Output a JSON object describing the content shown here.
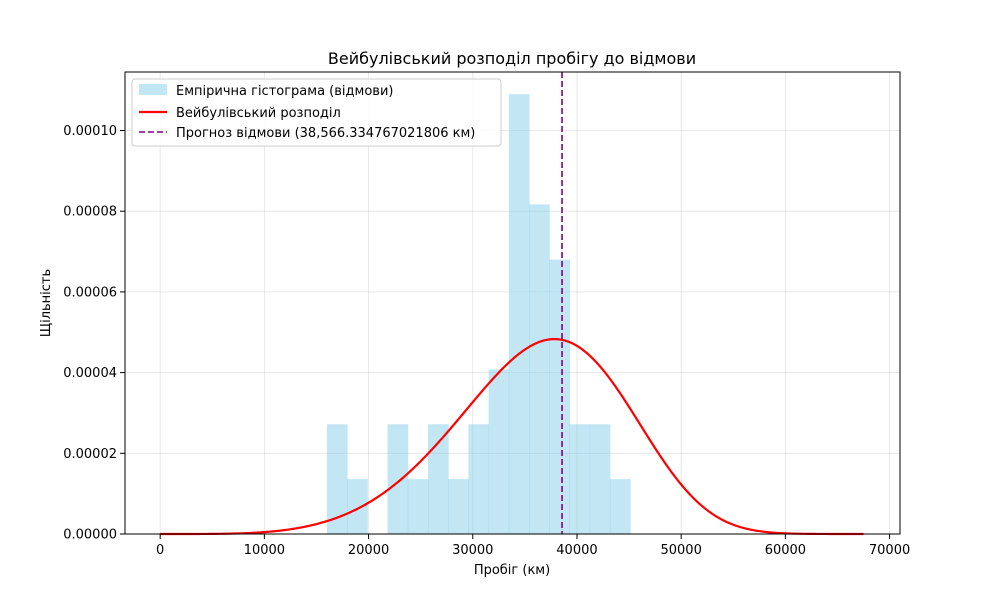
{
  "chart_data": {
    "type": "bar",
    "title": "Вейбулівський розподіл пробігу до відмови",
    "xlabel": "Пробіг (км)",
    "ylabel": "Щільність",
    "xlim": [
      -3375,
      71000
    ],
    "ylim": [
      0,
      0.0001145
    ],
    "x_ticks": [
      0,
      10000,
      20000,
      30000,
      40000,
      50000,
      60000,
      70000
    ],
    "x_tick_labels": [
      "0",
      "10000",
      "20000",
      "30000",
      "40000",
      "50000",
      "60000",
      "70000"
    ],
    "y_ticks": [
      0,
      2e-05,
      4e-05,
      6e-05,
      8e-05,
      0.0001
    ],
    "y_tick_labels": [
      "0.00000",
      "0.00002",
      "0.00004",
      "0.00006",
      "0.00008",
      "0.00010"
    ],
    "grid": true,
    "legend_position": "top-left",
    "histogram": {
      "name": "Емпірична гістограма (відмови)",
      "color": "#87ceeb",
      "bin_edges": [
        16000,
        17940,
        19880,
        21820,
        23760,
        25700,
        27640,
        29580,
        31520,
        33460,
        35400,
        37340,
        39280,
        41220,
        43160,
        45100
      ],
      "densities": [
        2.72e-05,
        1.36e-05,
        0,
        2.72e-05,
        1.36e-05,
        2.72e-05,
        1.36e-05,
        2.72e-05,
        4.08e-05,
        0.000109,
        8.17e-05,
        6.8e-05,
        2.72e-05,
        2.72e-05,
        1.36e-05
      ]
    },
    "weibull_curve": {
      "name": "Вейбулівський розподіл",
      "color": "#ff0000",
      "x_range": [
        0,
        67500
      ],
      "shape": 5.08,
      "scale": 39500
    },
    "failure_forecast": {
      "name": "Прогноз відмови (38,566.334767021806 км)",
      "value": 38566.334767021806,
      "color": "#800080"
    }
  }
}
